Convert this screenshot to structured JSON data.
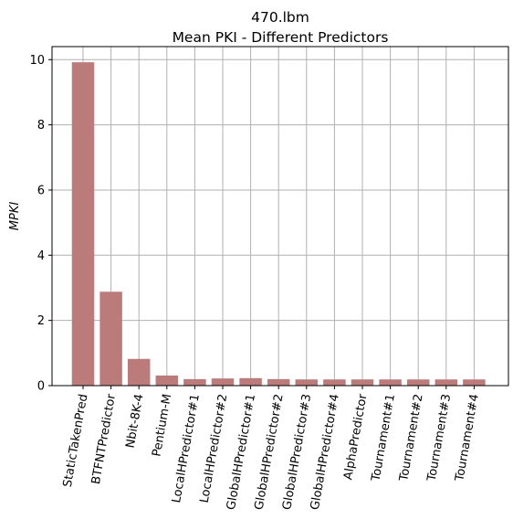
{
  "chart_data": {
    "type": "bar",
    "title_line1": "470.lbm",
    "title_line2": "Mean PKI - Different Predictors",
    "xlabel": "",
    "ylabel": "MPKI",
    "ylim": [
      0,
      10.4
    ],
    "yticks": [
      0,
      2,
      4,
      6,
      8,
      10
    ],
    "grid": true,
    "bar_color": "#bc7b7b",
    "grid_color": "#b0b0b0",
    "categories": [
      "StaticTakenPred",
      "BTFNTPredictor",
      "Nbit-8K-4",
      "Pentium-M",
      "LocalHPredictor#1",
      "LocalHPredictor#2",
      "GlobalHPredictor#1",
      "GlobalHPredictor#2",
      "GlobalHPredictor#3",
      "GlobalHPredictor#4",
      "AlphaPredictor",
      "Tournament#1",
      "Tournament#2",
      "Tournament#3",
      "Tournament#4"
    ],
    "values": [
      9.92,
      2.88,
      0.82,
      0.31,
      0.2,
      0.22,
      0.23,
      0.2,
      0.19,
      0.19,
      0.19,
      0.19,
      0.19,
      0.19,
      0.19
    ]
  }
}
